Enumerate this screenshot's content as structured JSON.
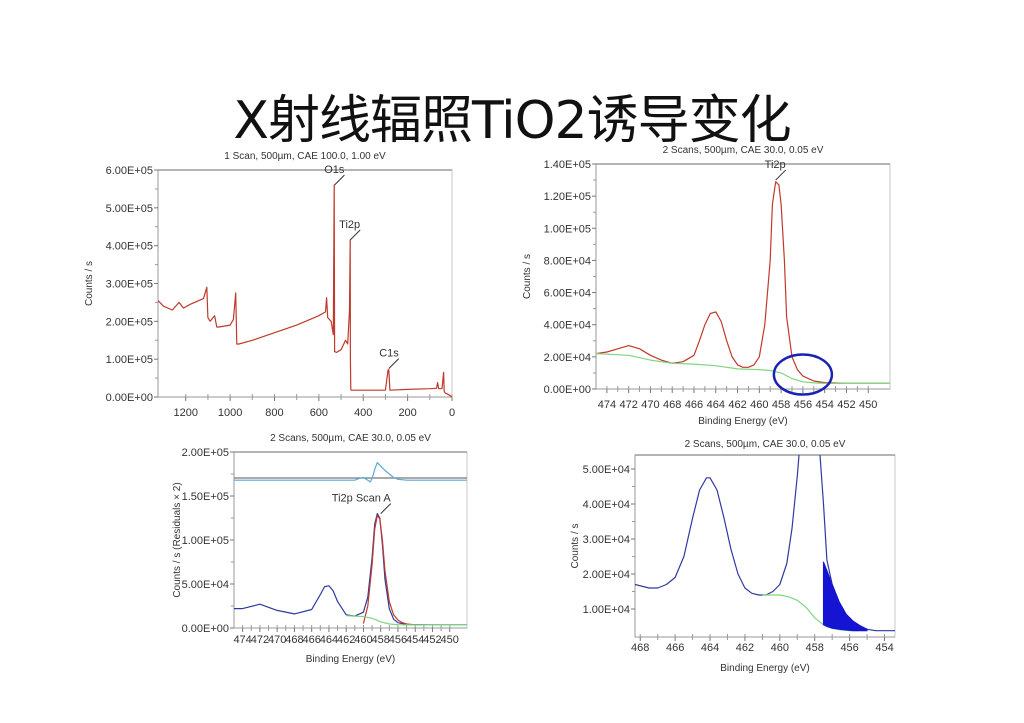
{
  "slide": {
    "title": "X射线辐照TiO2诱导变化"
  },
  "chart_data": [
    {
      "id": "survey",
      "type": "line",
      "title": "1 Scan,  500µm,  CAE 100.0,  1.00 eV",
      "xlabel": "",
      "ylabel": "Counts / s",
      "x_ticks": [
        "1200",
        "1000",
        "800",
        "600",
        "400",
        "200",
        "0"
      ],
      "y_ticks": [
        "0.00E+00",
        "1.00E+05",
        "2.00E+05",
        "3.00E+05",
        "4.00E+05",
        "5.00E+05",
        "6.00E+05"
      ],
      "xlim": [
        1325,
        0
      ],
      "ylim": [
        0,
        600000
      ],
      "annotations": [
        {
          "label": "O1s",
          "x": 530,
          "y": 560000
        },
        {
          "label": "Ti2p",
          "x": 459,
          "y": 415000
        },
        {
          "label": "C1s",
          "x": 285,
          "y": 75000
        }
      ],
      "series": [
        {
          "name": "survey",
          "color": "#c0392b",
          "x": [
            1325,
            1300,
            1260,
            1230,
            1210,
            1180,
            1120,
            1105,
            1100,
            1090,
            1070,
            1060,
            1050,
            1000,
            985,
            975,
            970,
            960,
            900,
            800,
            700,
            600,
            570,
            565,
            560,
            545,
            535,
            531,
            529,
            520,
            500,
            480,
            470,
            462,
            459,
            458,
            456,
            454,
            450,
            400,
            300,
            288,
            285,
            280,
            200,
            100,
            70,
            65,
            60,
            45,
            38,
            35,
            30,
            20,
            10,
            0
          ],
          "y": [
            255000,
            240000,
            230000,
            250000,
            235000,
            245000,
            260000,
            290000,
            210000,
            200000,
            215000,
            185000,
            185000,
            190000,
            205000,
            275000,
            140000,
            140000,
            150000,
            170000,
            190000,
            215000,
            225000,
            262000,
            210000,
            200000,
            165000,
            560000,
            120000,
            118000,
            125000,
            150000,
            140000,
            230000,
            415000,
            100000,
            20000,
            18000,
            18000,
            18000,
            18000,
            72000,
            72000,
            18000,
            20000,
            22000,
            23000,
            38000,
            22000,
            22000,
            65000,
            15000,
            10000,
            8000,
            4000,
            0
          ]
        }
      ]
    },
    {
      "id": "ti2p",
      "type": "line",
      "title": "2 Scans,  500µm,  CAE 30.0,  0.05 eV",
      "xlabel": "Binding Energy (eV)",
      "ylabel": "Counts / s",
      "x_ticks": [
        "474",
        "472",
        "470",
        "468",
        "466",
        "464",
        "462",
        "460",
        "458",
        "456",
        "454",
        "452",
        "450"
      ],
      "y_ticks": [
        "0.00E+00",
        "2.00E+04",
        "4.00E+04",
        "6.00E+04",
        "8.00E+04",
        "1.00E+05",
        "1.20E+05",
        "1.40E+05"
      ],
      "xlim": [
        475,
        448
      ],
      "ylim": [
        0,
        140000
      ],
      "annotations": [
        {
          "label": "Ti2p",
          "x": 458.5,
          "y": 130000
        },
        {
          "label": "highlight-ellipse",
          "x": 456,
          "y": 9000,
          "color": "#1a22b5"
        }
      ],
      "series": [
        {
          "name": "spectrum",
          "color": "#c0392b",
          "x": [
            475,
            474,
            473,
            472,
            471,
            470,
            469,
            468,
            467,
            466,
            465.5,
            465,
            464.5,
            464,
            463.5,
            463,
            462.5,
            462,
            461.5,
            461,
            460.5,
            460,
            459.5,
            459,
            458.8,
            458.5,
            458.2,
            458,
            457.7,
            457.5,
            457,
            456.5,
            456,
            455,
            454,
            452,
            450,
            448
          ],
          "y": [
            22000,
            23000,
            25000,
            27000,
            25000,
            21000,
            18000,
            16000,
            17000,
            21000,
            30000,
            40000,
            47000,
            48000,
            42000,
            30000,
            20000,
            15000,
            13500,
            13500,
            15000,
            20000,
            40000,
            80000,
            115000,
            129000,
            127000,
            115000,
            80000,
            45000,
            20000,
            12000,
            8000,
            5000,
            4000,
            3500,
            3500,
            3500
          ]
        },
        {
          "name": "background",
          "color": "#7ed67e",
          "x": [
            475,
            472,
            470,
            468,
            466,
            464,
            462,
            460,
            459,
            458,
            457,
            456,
            455,
            454,
            450,
            448
          ],
          "y": [
            22000,
            21000,
            18000,
            16000,
            15500,
            14500,
            12500,
            12000,
            11500,
            10000,
            6500,
            4500,
            3800,
            3500,
            3500,
            3500
          ]
        }
      ]
    },
    {
      "id": "ti2p-fit",
      "type": "line",
      "title": "2 Scans,  500µm,  CAE 30.0,  0.05 eV",
      "xlabel": "Binding Energy (eV)",
      "ylabel": "Counts / s  (Residuals × 2)",
      "x_ticks": [
        "474",
        "472",
        "470",
        "468",
        "466",
        "464",
        "462",
        "460",
        "458",
        "456",
        "454",
        "452",
        "450"
      ],
      "y_ticks": [
        "0.00E+00",
        "5.00E+04",
        "1.00E+05",
        "1.50E+05",
        "2.00E+05"
      ],
      "xlim": [
        475,
        448
      ],
      "ylim": [
        0,
        200000
      ],
      "annotations": [
        {
          "label": "Ti2p Scan A",
          "x": 458,
          "y": 130000
        }
      ],
      "series": [
        {
          "name": "envelope",
          "color": "#2f3aa0",
          "x": [
            475,
            474,
            472,
            470,
            468,
            466,
            465,
            464.5,
            464,
            463.5,
            463,
            462,
            461,
            460,
            459.5,
            459,
            458.7,
            458.4,
            458.1,
            457.8,
            457.5,
            457,
            456.5,
            456,
            455,
            452,
            448
          ],
          "y": [
            22000,
            22000,
            27000,
            20000,
            16000,
            21000,
            38000,
            47000,
            48000,
            42000,
            30000,
            15000,
            13500,
            18000,
            35000,
            80000,
            118000,
            130000,
            125000,
            95000,
            55000,
            22000,
            10000,
            6000,
            4000,
            3500,
            3500
          ]
        },
        {
          "name": "component",
          "color": "#c0392b",
          "x": [
            460,
            459.5,
            459,
            458.7,
            458.4,
            458.1,
            457.8,
            457.5,
            457,
            456.5,
            456,
            455.5,
            455,
            454
          ],
          "y": [
            5000,
            25000,
            72000,
            112000,
            128000,
            124000,
            100000,
            65000,
            30000,
            15000,
            9000,
            6000,
            4500,
            3500
          ]
        },
        {
          "name": "background",
          "color": "#7ed67e",
          "x": [
            462,
            461,
            460,
            459,
            458,
            457,
            456,
            455,
            452,
            448
          ],
          "y": [
            14000,
            13500,
            13000,
            11000,
            7000,
            4500,
            3800,
            3500,
            3500,
            3500
          ]
        },
        {
          "name": "residuals",
          "color": "#5aa9d6",
          "x": [
            475,
            461,
            460.5,
            460,
            459.5,
            459.2,
            459,
            458.7,
            458.4,
            458,
            457.5,
            457,
            456.5,
            456,
            455,
            448
          ],
          "y": [
            168000,
            168000,
            170000,
            171000,
            168000,
            166000,
            170000,
            180000,
            188000,
            184000,
            179000,
            175000,
            171000,
            169000,
            168000,
            168000
          ]
        }
      ]
    },
    {
      "id": "ti2p-zoom",
      "type": "area",
      "title": "2 Scans,  500µm,  CAE 30.0,  0.05 eV",
      "xlabel": "Binding Energy (eV)",
      "ylabel": "Counts / s",
      "x_ticks": [
        "468",
        "466",
        "464",
        "462",
        "460",
        "458",
        "456",
        "454"
      ],
      "y_ticks": [
        "1.00E+04",
        "2.00E+04",
        "3.00E+04",
        "4.00E+04",
        "5.00E+04"
      ],
      "xlim": [
        468.3,
        453.4
      ],
      "ylim": [
        2000,
        54000
      ],
      "annotations": [
        {
          "label": "shaded region (Ti3+ tail)",
          "x_range": [
            457.5,
            455
          ],
          "color": "#1414d2"
        }
      ],
      "series": [
        {
          "name": "envelope",
          "color": "#2f3aa0",
          "x": [
            468.3,
            467.5,
            467,
            466.5,
            466,
            465.5,
            465,
            464.6,
            464.2,
            464,
            463.6,
            463.2,
            462.8,
            462.4,
            462,
            461.6,
            461.2,
            460.8,
            460.4,
            460,
            459.6,
            459.3,
            459,
            458.9
          ],
          "y": [
            17000,
            16000,
            16000,
            17000,
            19000,
            25000,
            36000,
            44000,
            47500,
            47500,
            44000,
            36000,
            27000,
            20000,
            16000,
            14500,
            14000,
            14000,
            15000,
            17000,
            23000,
            33000,
            48000,
            54000
          ]
        },
        {
          "name": "envelope-right",
          "color": "#2f3aa0",
          "x": [
            457.7,
            457.5,
            457.3,
            457,
            456.6,
            456.2,
            455.8,
            455.4,
            455,
            454.5,
            453.4
          ],
          "y": [
            54000,
            40000,
            24000,
            17000,
            12000,
            8500,
            6500,
            5200,
            4200,
            3800,
            3800
          ]
        },
        {
          "name": "background",
          "color": "#7ed67e",
          "x": [
            461,
            460,
            459.5,
            459,
            458.5,
            458,
            457.5,
            457,
            456.5,
            456,
            455.5
          ],
          "y": [
            14000,
            14000,
            13500,
            12500,
            10500,
            7500,
            5500,
            4500,
            4000,
            3800,
            3800
          ]
        },
        {
          "name": "shaded-difference",
          "color": "#1414d2",
          "x": [
            457.5,
            457.3,
            457,
            456.6,
            456.2,
            455.8,
            455.4,
            455
          ],
          "y_top": [
            23500,
            21000,
            17000,
            12000,
            8500,
            6500,
            5200,
            4200
          ],
          "y_bottom": [
            5500,
            5000,
            4500,
            4200,
            4000,
            3800,
            3800,
            3800
          ]
        }
      ]
    }
  ]
}
